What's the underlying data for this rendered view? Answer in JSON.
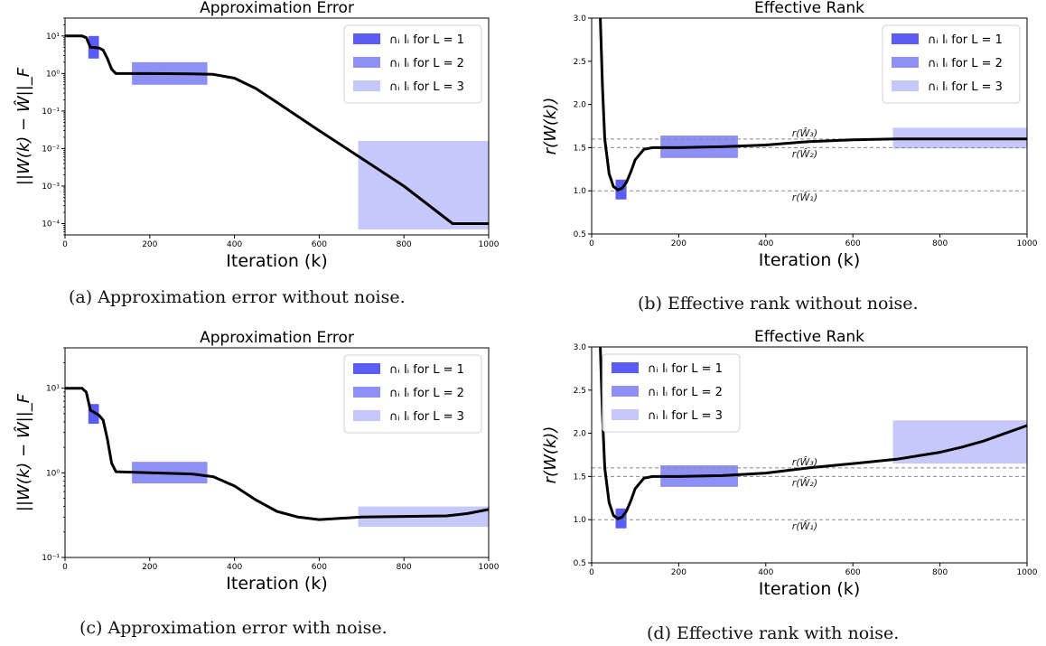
{
  "captions": {
    "a": "(a) Approximation error without noise.",
    "b": "(b) Effective rank without noise.",
    "c": "(c) Approximation error with noise.",
    "d": "(d) Effective rank with noise."
  },
  "colors": {
    "L1": "#5b5cf5",
    "L2": "#8f90f6",
    "L3": "#c6c7fb",
    "curve": "#000000",
    "ref": "#888888"
  },
  "chart_data": [
    {
      "id": "a",
      "type": "line",
      "title": "Approximation Error",
      "xlabel": "Iteration (k)",
      "ylabel": "||W(k) − Ŵ||_F",
      "yscale": "log",
      "xlim": [
        0,
        1000
      ],
      "ylim": [
        5e-05,
        30
      ],
      "xticks": [
        0,
        200,
        400,
        600,
        800,
        1000
      ],
      "yticks": [
        0.0001,
        0.001,
        0.01,
        0.1,
        1,
        10
      ],
      "ytick_labels": [
        "10⁻⁴",
        "10⁻³",
        "10⁻²",
        "10⁻¹",
        "10⁰",
        "10¹"
      ],
      "legend": {
        "placement": "top-right",
        "entries": [
          "∩ᵢ Iᵢ for L = 1",
          "∩ᵢ Iᵢ for L = 2",
          "∩ᵢ Iᵢ for L = 3"
        ]
      },
      "regions": [
        {
          "series": "L1",
          "x": [
            55,
            80
          ],
          "y": [
            2.5,
            10
          ]
        },
        {
          "series": "L2",
          "x": [
            158,
            336
          ],
          "y": [
            0.5,
            2
          ]
        },
        {
          "series": "L3",
          "x": [
            692,
            1000
          ],
          "y": [
            7e-05,
            0.016
          ]
        }
      ],
      "series": [
        {
          "x": [
            0,
            40,
            50,
            60,
            80,
            90,
            100,
            110,
            120,
            200,
            300,
            350,
            400,
            450,
            500,
            600,
            700,
            800,
            915,
            1000
          ],
          "y": [
            10,
            10,
            9,
            5,
            4.8,
            4.2,
            2.5,
            1.3,
            1,
            1,
            0.98,
            0.95,
            0.75,
            0.4,
            0.17,
            0.03,
            0.0055,
            0.001,
            0.0001,
            0.0001
          ]
        }
      ]
    },
    {
      "id": "b",
      "type": "line",
      "title": "Effective Rank",
      "xlabel": "Iteration (k)",
      "ylabel": "r(W(k))",
      "yscale": "linear",
      "xlim": [
        0,
        1000
      ],
      "ylim": [
        0.5,
        3.0
      ],
      "xticks": [
        0,
        200,
        400,
        600,
        800,
        1000
      ],
      "yticks": [
        0.5,
        1.0,
        1.5,
        2.0,
        2.5,
        3.0
      ],
      "ytick_labels": [
        "0.5",
        "1.0",
        "1.5",
        "2.0",
        "2.5",
        "3.0"
      ],
      "legend": {
        "placement": "top-right",
        "entries": [
          "∩ᵢ Iᵢ for L = 1",
          "∩ᵢ Iᵢ for L = 2",
          "∩ᵢ Iᵢ for L = 3"
        ]
      },
      "ref_lines": [
        {
          "y": 1.6,
          "label": "r(Ŵ₃)",
          "label_y": 1.67
        },
        {
          "y": 1.5,
          "label": "r(Ŵ₂)",
          "label_y": 1.43
        },
        {
          "y": 1.0,
          "label": "r(Ŵ₁)",
          "label_y": 0.93
        }
      ],
      "regions": [
        {
          "series": "L1",
          "x": [
            55,
            80
          ],
          "y": [
            0.9,
            1.13
          ]
        },
        {
          "series": "L2",
          "x": [
            158,
            336
          ],
          "y": [
            1.38,
            1.64
          ]
        },
        {
          "series": "L3",
          "x": [
            692,
            1000
          ],
          "y": [
            1.49,
            1.73
          ]
        }
      ],
      "series": [
        {
          "x": [
            20,
            25,
            30,
            40,
            50,
            60,
            70,
            80,
            90,
            100,
            120,
            140,
            160,
            200,
            300,
            400,
            500,
            600,
            700,
            800,
            900,
            1000
          ],
          "y": [
            3.0,
            2.2,
            1.6,
            1.2,
            1.05,
            1.01,
            1.03,
            1.1,
            1.22,
            1.36,
            1.48,
            1.5,
            1.5,
            1.5,
            1.51,
            1.53,
            1.57,
            1.59,
            1.6,
            1.6,
            1.6,
            1.6
          ]
        }
      ]
    },
    {
      "id": "c",
      "type": "line",
      "title": "Approximation Error",
      "xlabel": "Iteration (k)",
      "ylabel": "||W(k) − Ŵ||_F",
      "yscale": "log",
      "xlim": [
        0,
        1000
      ],
      "ylim": [
        0.1,
        30
      ],
      "xticks": [
        0,
        200,
        400,
        600,
        800,
        1000
      ],
      "yticks": [
        0.1,
        1,
        10
      ],
      "ytick_labels": [
        "10⁻¹",
        "10⁰",
        "10¹"
      ],
      "legend": {
        "placement": "top-right",
        "entries": [
          "∩ᵢ Iᵢ for L = 1",
          "∩ᵢ Iᵢ for L = 2",
          "∩ᵢ Iᵢ for L = 3"
        ]
      },
      "regions": [
        {
          "series": "L1",
          "x": [
            55,
            80
          ],
          "y": [
            3.8,
            6.5
          ]
        },
        {
          "series": "L2",
          "x": [
            158,
            336
          ],
          "y": [
            0.75,
            1.35
          ]
        },
        {
          "series": "L3",
          "x": [
            692,
            1000
          ],
          "y": [
            0.23,
            0.4
          ]
        }
      ],
      "series": [
        {
          "x": [
            0,
            40,
            50,
            60,
            80,
            90,
            100,
            110,
            120,
            200,
            300,
            350,
            400,
            450,
            500,
            550,
            600,
            700,
            800,
            900,
            950,
            1000
          ],
          "y": [
            10,
            10,
            9,
            5.5,
            4.8,
            4.2,
            2.5,
            1.3,
            1.03,
            1.0,
            0.97,
            0.9,
            0.7,
            0.48,
            0.35,
            0.3,
            0.28,
            0.3,
            0.305,
            0.31,
            0.33,
            0.37
          ]
        }
      ]
    },
    {
      "id": "d",
      "type": "line",
      "title": "Effective Rank",
      "xlabel": "Iteration (k)",
      "ylabel": "r(W(k))",
      "yscale": "linear",
      "xlim": [
        0,
        1000
      ],
      "ylim": [
        0.5,
        3.0
      ],
      "xticks": [
        0,
        200,
        400,
        600,
        800,
        1000
      ],
      "yticks": [
        0.5,
        1.0,
        1.5,
        2.0,
        2.5,
        3.0
      ],
      "ytick_labels": [
        "0.5",
        "1.0",
        "1.5",
        "2.0",
        "2.5",
        "3.0"
      ],
      "legend": {
        "placement": "top-left",
        "entries": [
          "∩ᵢ Iᵢ for L = 1",
          "∩ᵢ Iᵢ for L = 2",
          "∩ᵢ Iᵢ for L = 3"
        ]
      },
      "ref_lines": [
        {
          "y": 1.6,
          "label": "r(Ŵ₃)",
          "label_y": 1.67
        },
        {
          "y": 1.5,
          "label": "r(Ŵ₂)",
          "label_y": 1.43
        },
        {
          "y": 1.0,
          "label": "r(Ŵ₁)",
          "label_y": 0.93
        }
      ],
      "regions": [
        {
          "series": "L1",
          "x": [
            55,
            80
          ],
          "y": [
            0.9,
            1.13
          ]
        },
        {
          "series": "L2",
          "x": [
            158,
            336
          ],
          "y": [
            1.38,
            1.63
          ]
        },
        {
          "series": "L3",
          "x": [
            692,
            1000
          ],
          "y": [
            1.65,
            2.15
          ]
        }
      ],
      "series": [
        {
          "x": [
            20,
            25,
            30,
            40,
            50,
            60,
            70,
            80,
            90,
            100,
            120,
            140,
            160,
            200,
            300,
            400,
            500,
            600,
            700,
            800,
            850,
            900,
            950,
            1000
          ],
          "y": [
            3.0,
            2.2,
            1.6,
            1.2,
            1.05,
            1.01,
            1.03,
            1.1,
            1.22,
            1.36,
            1.48,
            1.5,
            1.5,
            1.5,
            1.51,
            1.54,
            1.6,
            1.65,
            1.7,
            1.78,
            1.84,
            1.91,
            2.0,
            2.09
          ]
        }
      ]
    }
  ]
}
